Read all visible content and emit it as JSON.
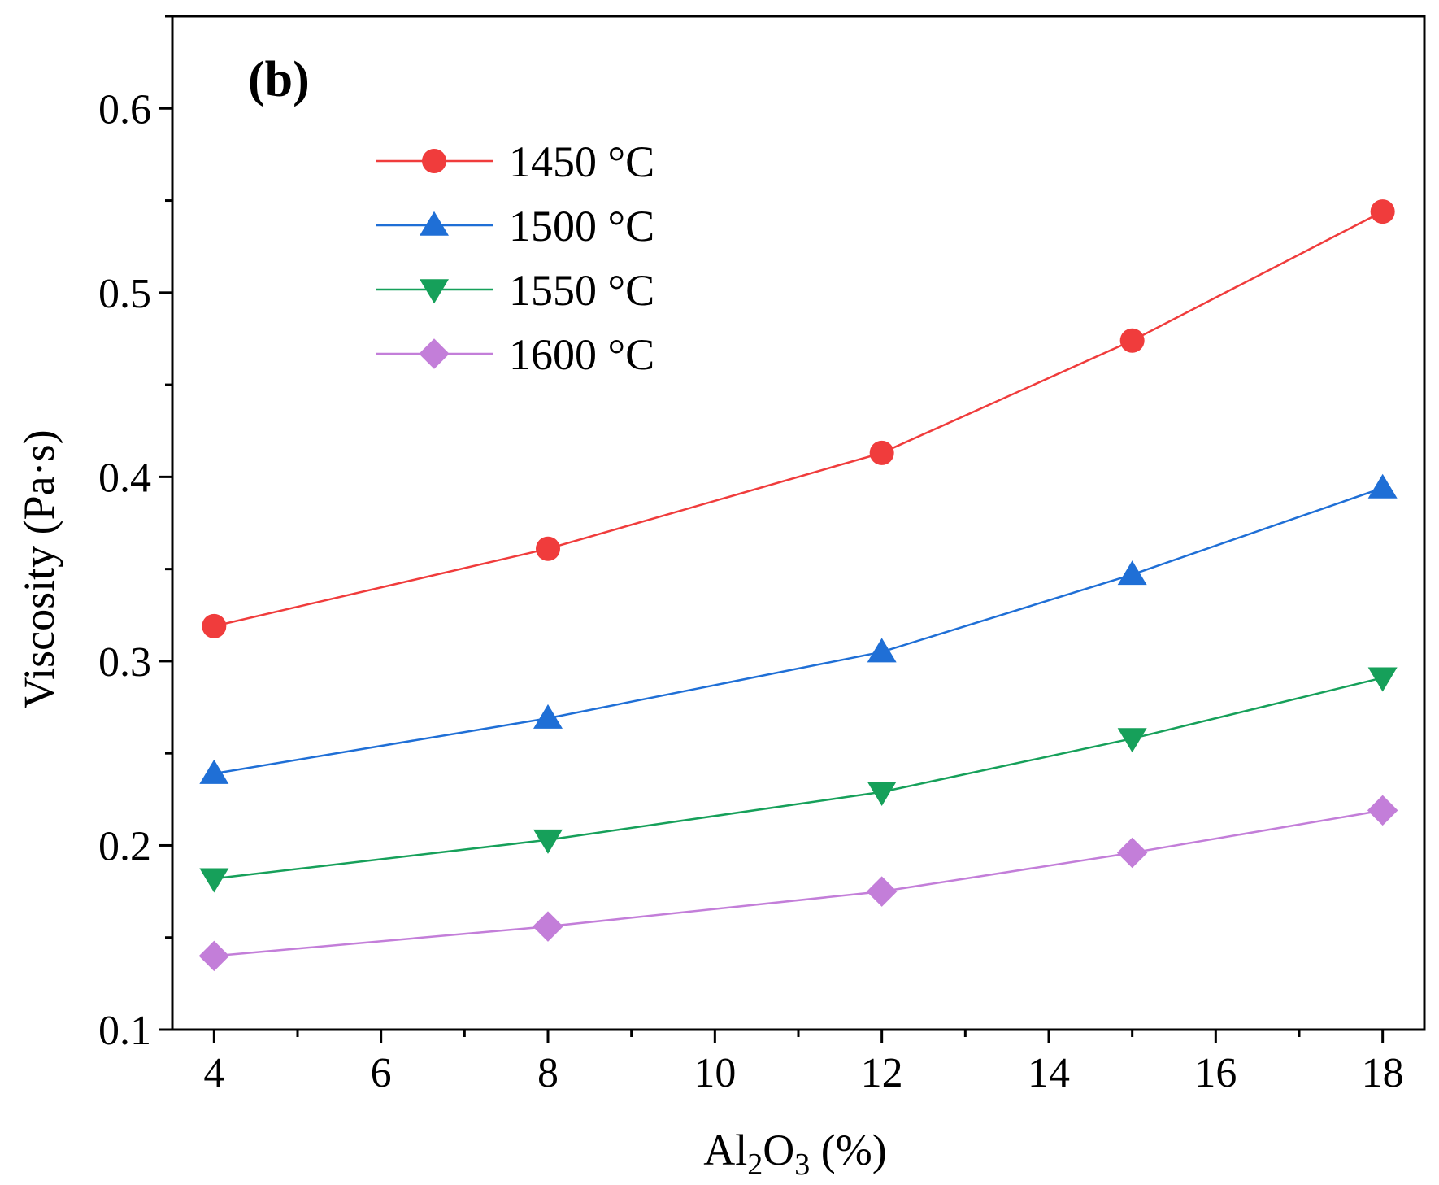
{
  "chart_data": {
    "type": "line",
    "panel_label": "(b)",
    "xlabel": {
      "prefix": "Al",
      "sub1": "2",
      "mid": "O",
      "sub2": "3",
      "suffix": " (%)"
    },
    "ylabel": "Viscosity (Pa·s)",
    "xlim": [
      3.5,
      18.5
    ],
    "ylim": [
      0.1,
      0.65
    ],
    "x_ticks": [
      4,
      6,
      8,
      10,
      12,
      14,
      16,
      18
    ],
    "x_tick_labels": [
      "4",
      "6",
      "8",
      "10",
      "12",
      "14",
      "16",
      "18"
    ],
    "y_ticks": [
      0.1,
      0.2,
      0.3,
      0.4,
      0.5,
      0.6
    ],
    "y_tick_labels": [
      "0.1",
      "0.2",
      "0.3",
      "0.4",
      "0.5",
      "0.6"
    ],
    "x": [
      4,
      8,
      12,
      15,
      18
    ],
    "legend_position": "top-left",
    "series": [
      {
        "name": "1450 °C",
        "marker": "circle",
        "color": "#f03c3c",
        "values": [
          0.319,
          0.361,
          0.413,
          0.474,
          0.544
        ]
      },
      {
        "name": "1500 °C",
        "marker": "triangle-up",
        "color": "#1f6fd6",
        "values": [
          0.239,
          0.269,
          0.305,
          0.347,
          0.394
        ]
      },
      {
        "name": "1550 °C",
        "marker": "triangle-down",
        "color": "#16a05a",
        "values": [
          0.182,
          0.203,
          0.229,
          0.258,
          0.291
        ]
      },
      {
        "name": "1600 °C",
        "marker": "diamond",
        "color": "#c37ed9",
        "values": [
          0.14,
          0.156,
          0.175,
          0.196,
          0.219
        ]
      }
    ]
  }
}
